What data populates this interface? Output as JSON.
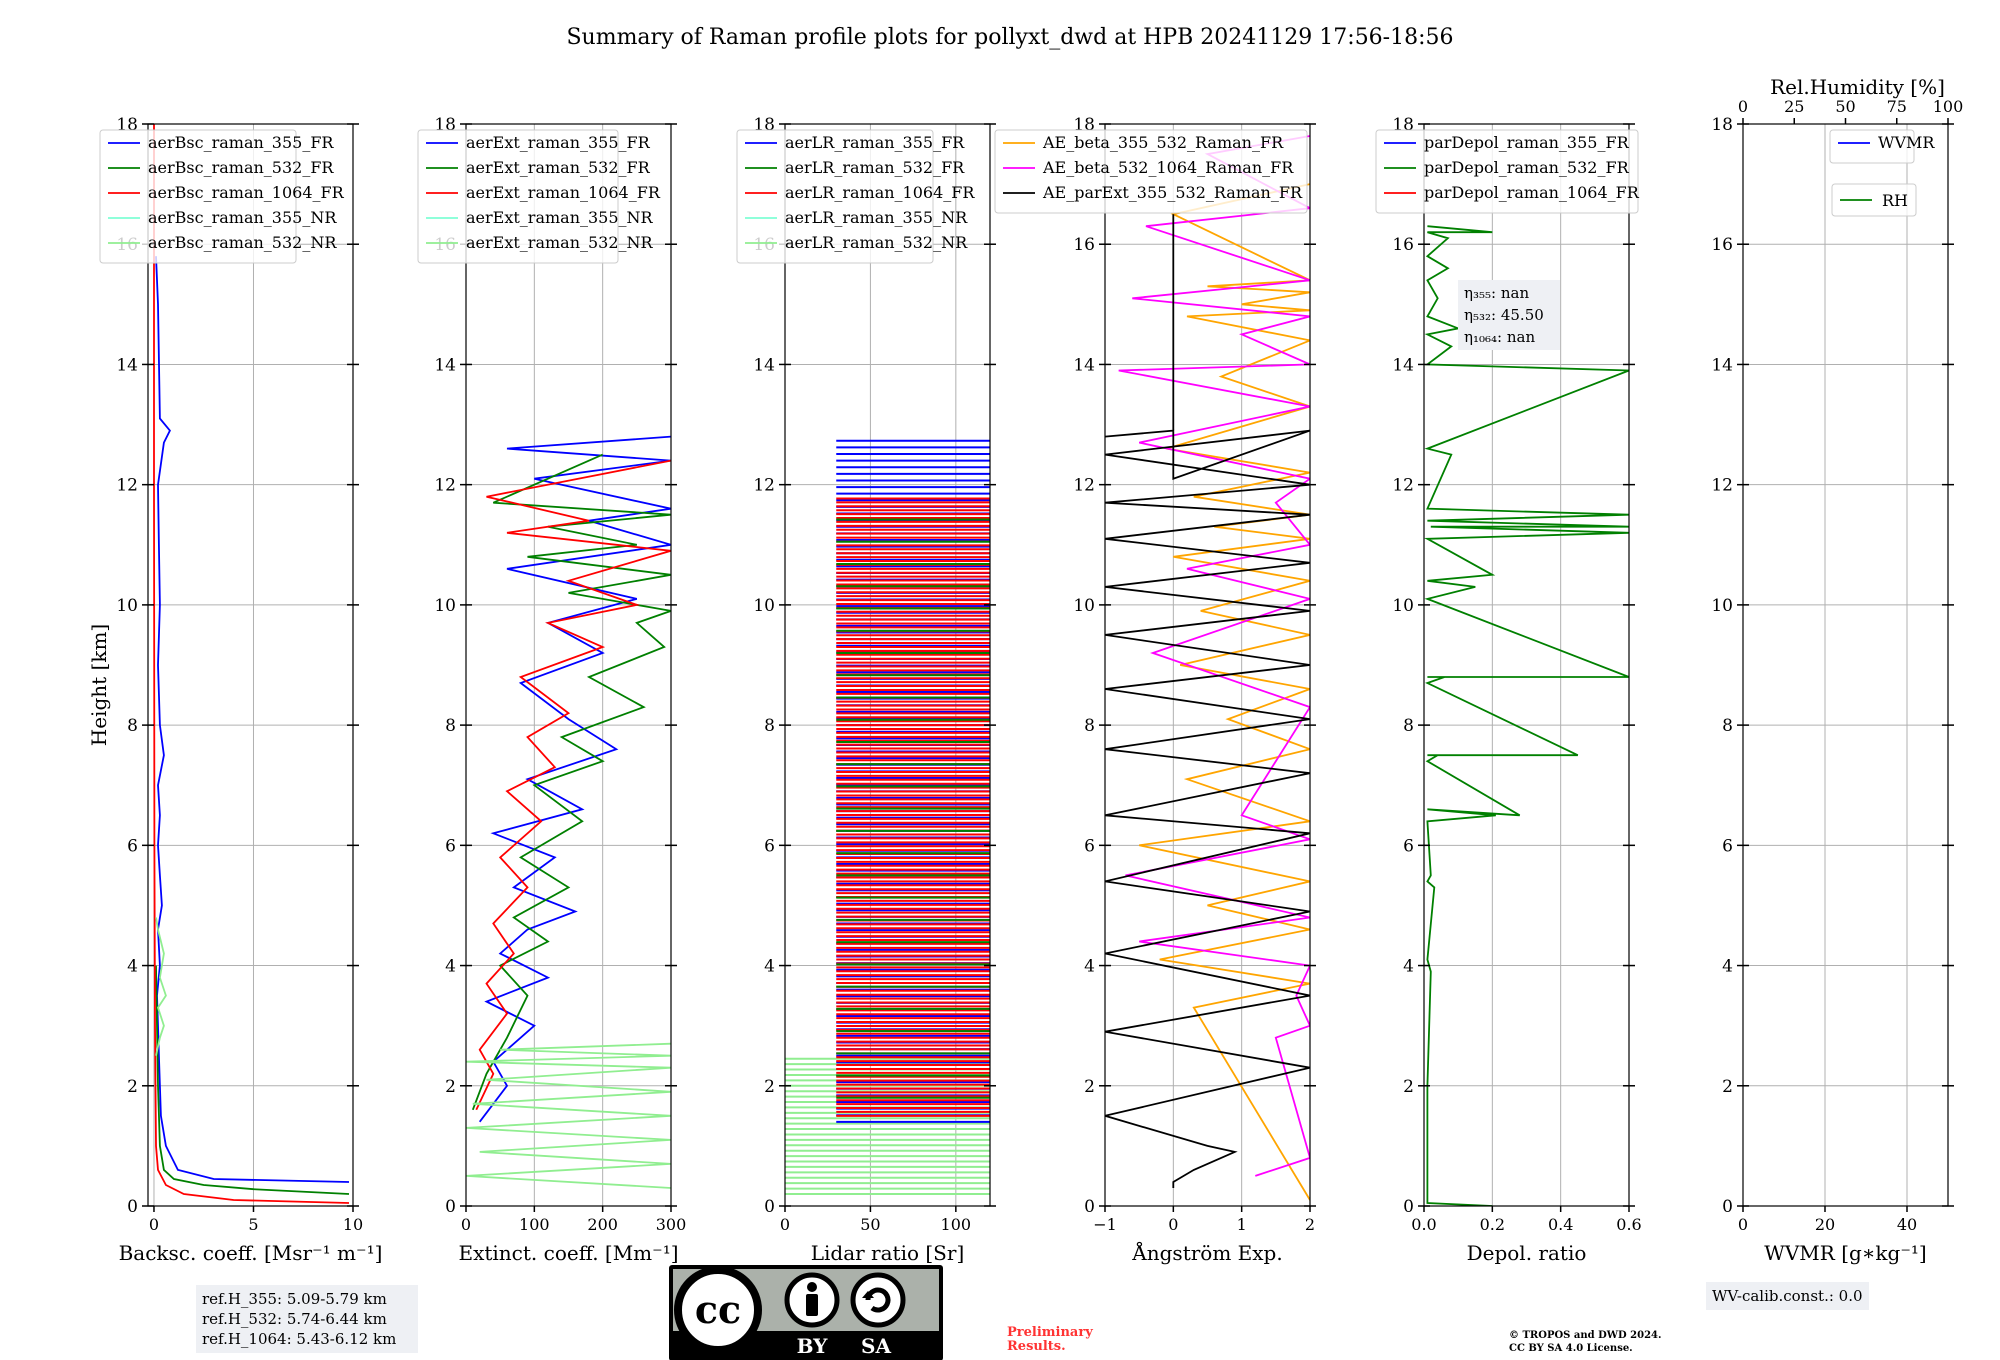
{
  "figure": {
    "title": "Summary of Raman profile plots for pollyxt_dwd at HPB 20241129 17:56-18:56",
    "ylabel": "Height [km]"
  },
  "chart_data": [
    {
      "type": "line",
      "name": "backscatter",
      "xlabel": "Backsc. coeff. [Msr⁻¹ m⁻¹]",
      "xlim": [
        -0.3,
        10
      ],
      "ylim": [
        0,
        18
      ],
      "xticks": [
        0,
        5,
        10
      ],
      "xtick_labels": [
        "0",
        "5",
        "10"
      ],
      "yticks": [
        0,
        2,
        4,
        6,
        8,
        10,
        12,
        14,
        16,
        18
      ],
      "ytick_labels": [
        "0",
        "2",
        "4",
        "6",
        "8",
        "10",
        "12",
        "14",
        "16",
        "18"
      ],
      "legend": [
        "aerBsc_raman_355_FR",
        "aerBsc_raman_532_FR",
        "aerBsc_raman_1064_FR",
        "aerBsc_raman_355_NR",
        "aerBsc_raman_532_NR"
      ],
      "series": [
        {
          "name": "aerBsc_raman_355_FR",
          "color": "#0000ff",
          "x": [
            9.8,
            3,
            1.2,
            0.6,
            0.35,
            0.3,
            0.25,
            0.2,
            0.15,
            0.3,
            0.2,
            0.4,
            0.3,
            0.2,
            0.3,
            0.2,
            0.5,
            0.3,
            0.2,
            0.3,
            0.25,
            0.2,
            0.5,
            0.8,
            0.3,
            0.2,
            0.1
          ],
          "y": [
            0.4,
            0.45,
            0.6,
            1,
            1.5,
            2,
            2.5,
            3,
            3.5,
            4,
            4.6,
            5,
            5.5,
            6,
            6.5,
            7,
            7.5,
            8,
            9,
            10,
            11,
            12,
            12.7,
            12.9,
            13.1,
            15,
            15.8
          ]
        },
        {
          "name": "aerBsc_raman_532_FR",
          "color": "#008000",
          "x": [
            9.8,
            5,
            2.5,
            1,
            0.5,
            0.3,
            0.2,
            0.15,
            0.1
          ],
          "y": [
            0.2,
            0.28,
            0.35,
            0.45,
            0.6,
            1,
            2,
            3,
            4
          ]
        },
        {
          "name": "aerBsc_raman_1064_FR",
          "color": "#ff0000",
          "x": [
            9.8,
            4,
            1.5,
            0.6,
            0.2,
            0.1,
            0.05,
            0.02,
            0,
            0
          ],
          "y": [
            0.05,
            0.1,
            0.2,
            0.35,
            0.6,
            1,
            3,
            6,
            12,
            18
          ]
        },
        {
          "name": "aerBsc_raman_532_NR",
          "color": "#90ee90",
          "x": [
            0.1,
            0.3,
            0.5,
            0.2,
            0.6,
            0.3,
            0.5,
            0.2,
            0.1
          ],
          "y": [
            2.5,
            2.8,
            3,
            3.3,
            3.5,
            3.8,
            4.2,
            4.6,
            4.8
          ]
        }
      ]
    },
    {
      "type": "line",
      "name": "extinction",
      "xlabel": "Extinct. coeff. [Mm⁻¹]",
      "xlim": [
        0,
        300
      ],
      "ylim": [
        0,
        18
      ],
      "xticks": [
        0,
        100,
        200,
        300
      ],
      "xtick_labels": [
        "0",
        "100",
        "200",
        "300"
      ],
      "yticks": [
        0,
        2,
        4,
        6,
        8,
        10,
        12,
        14,
        16,
        18
      ],
      "ytick_labels": [
        "0",
        "2",
        "4",
        "6",
        "8",
        "10",
        "12",
        "14",
        "16",
        "18"
      ],
      "legend": [
        "aerExt_raman_355_FR",
        "aerExt_raman_532_FR",
        "aerExt_raman_1064_FR",
        "aerExt_raman_355_NR",
        "aerExt_raman_532_NR"
      ],
      "series": [
        {
          "name": "aerExt_raman_355_FR",
          "color": "#0000ff",
          "x": [
            20,
            60,
            40,
            100,
            30,
            120,
            50,
            90,
            160,
            70,
            130,
            40,
            170,
            90,
            220,
            150,
            80,
            200,
            120,
            250,
            60,
            300,
            180,
            300,
            100,
            300,
            60,
            300
          ],
          "y": [
            1.4,
            2,
            2.4,
            3,
            3.4,
            3.8,
            4.2,
            4.6,
            4.9,
            5.3,
            5.8,
            6.2,
            6.6,
            7.1,
            7.6,
            8.1,
            8.7,
            9.2,
            9.7,
            10.1,
            10.6,
            11,
            11.4,
            11.6,
            12.1,
            12.4,
            12.6,
            12.8
          ]
        },
        {
          "name": "aerExt_raman_532_FR",
          "color": "#008000",
          "x": [
            10,
            30,
            60,
            90,
            50,
            120,
            70,
            150,
            80,
            170,
            100,
            200,
            140,
            260,
            180,
            290,
            250,
            300,
            150,
            300,
            90,
            250,
            120,
            300,
            40,
            200
          ],
          "y": [
            1.6,
            2.2,
            2.8,
            3.5,
            4,
            4.4,
            4.8,
            5.3,
            5.8,
            6.4,
            7,
            7.4,
            7.8,
            8.3,
            8.8,
            9.3,
            9.7,
            9.9,
            10.2,
            10.5,
            10.8,
            11,
            11.3,
            11.5,
            11.7,
            12.5
          ]
        },
        {
          "name": "aerExt_raman_1064_FR",
          "color": "#ff0000",
          "x": [
            15,
            40,
            20,
            60,
            30,
            70,
            40,
            90,
            50,
            110,
            60,
            130,
            90,
            150,
            80,
            200,
            120,
            250,
            150,
            300,
            60,
            180,
            30,
            300
          ],
          "y": [
            1.6,
            2.2,
            2.6,
            3.2,
            3.7,
            4.2,
            4.7,
            5.3,
            5.8,
            6.4,
            6.9,
            7.3,
            7.8,
            8.2,
            8.8,
            9.3,
            9.7,
            10,
            10.4,
            10.9,
            11.2,
            11.4,
            11.8,
            12.4
          ]
        },
        {
          "name": "aerExt_raman_532_NR",
          "color": "#90ee90",
          "x": [
            300,
            0,
            300,
            20,
            300,
            0,
            300,
            10,
            300,
            30,
            300,
            0,
            300,
            50,
            300
          ],
          "y": [
            0.3,
            0.5,
            0.7,
            0.9,
            1.1,
            1.3,
            1.5,
            1.7,
            1.9,
            2.1,
            2.3,
            2.4,
            2.5,
            2.6,
            2.7
          ]
        }
      ]
    },
    {
      "type": "line",
      "name": "lidar_ratio",
      "xlabel": "Lidar ratio [Sr]",
      "xlim": [
        0,
        120
      ],
      "ylim": [
        0,
        18
      ],
      "xticks": [
        0,
        50,
        100
      ],
      "xtick_labels": [
        "0",
        "50",
        "100"
      ],
      "yticks": [
        0,
        2,
        4,
        6,
        8,
        10,
        12,
        14,
        16,
        18
      ],
      "ytick_labels": [
        "0",
        "2",
        "4",
        "6",
        "8",
        "10",
        "12",
        "14",
        "16",
        "18"
      ],
      "legend": [
        "aerLR_raman_355_FR",
        "aerLR_raman_532_FR",
        "aerLR_raman_1064_FR",
        "aerLR_raman_355_NR",
        "aerLR_raman_532_NR"
      ],
      "bands": [
        {
          "name": "aerLR_raman_532_NR",
          "color": "#90ee90",
          "from": 0.2,
          "to": 2.5,
          "step": 0.09
        },
        {
          "name": "aerLR_raman_355_FR",
          "color": "#0000ff",
          "from": 1.4,
          "to": 12.8,
          "step": 0.11
        },
        {
          "name": "aerLR_raman_1064_FR",
          "color": "#ff0000",
          "from": 1.5,
          "to": 11.8,
          "step": 0.065
        },
        {
          "name": "aerLR_raman_532_FR",
          "color": "#008000",
          "from": 1.8,
          "to": 11.5,
          "step": 0.37
        }
      ]
    },
    {
      "type": "line",
      "name": "angstrom",
      "xlabel": "Ångström Exp.",
      "xlim": [
        -1,
        2
      ],
      "ylim": [
        0,
        18
      ],
      "xticks": [
        -1,
        0,
        1,
        2
      ],
      "xtick_labels": [
        "−1",
        "0",
        "1",
        "2"
      ],
      "yticks": [
        0,
        2,
        4,
        6,
        8,
        10,
        12,
        14,
        16,
        18
      ],
      "ytick_labels": [
        "0",
        "2",
        "4",
        "6",
        "8",
        "10",
        "12",
        "14",
        "16",
        "18"
      ],
      "legend": [
        "AE_beta_355_532_Raman_FR",
        "AE_beta_532_1064_Raman_FR",
        "AE_parExt_355_532_Raman_FR"
      ],
      "series": [
        {
          "name": "AE_beta_355_532_Raman_FR",
          "color": "#ffa500",
          "x": [
            2,
            0.3,
            2,
            -0.2,
            2,
            0.5,
            2,
            -0.5,
            2,
            0.2,
            2,
            0.8,
            2,
            0.1,
            2,
            0.4,
            2,
            0,
            2,
            0.6,
            2,
            0.3,
            2,
            -0.1,
            2,
            0.7,
            2,
            0.2,
            2,
            1,
            2,
            0.5,
            2,
            0,
            2
          ],
          "y": [
            0.1,
            3.3,
            3.7,
            4.1,
            4.6,
            5,
            5.4,
            6,
            6.4,
            7.1,
            7.6,
            8.1,
            8.6,
            9,
            9.5,
            9.9,
            10.4,
            10.8,
            11.1,
            11.3,
            11.5,
            11.8,
            12.2,
            12.6,
            13.3,
            13.8,
            14.4,
            14.8,
            14.9,
            15,
            15.2,
            15.3,
            15.4,
            16.5,
            17
          ]
        },
        {
          "name": "AE_beta_532_1064_Raman_FR",
          "color": "#ff00ff",
          "x": [
            1.2,
            2,
            1.5,
            2,
            1.8,
            2,
            -0.5,
            2,
            -0.7,
            2,
            1,
            2,
            -0.3,
            2,
            0.2,
            2,
            1.5,
            2,
            -0.5,
            2,
            -0.8,
            2,
            1,
            2,
            -0.6,
            2,
            -0.4,
            2,
            0.5,
            2
          ],
          "y": [
            0.5,
            0.8,
            2.8,
            3,
            3.5,
            4,
            4.4,
            4.8,
            5.5,
            6.1,
            6.5,
            8.3,
            9.2,
            10.1,
            10.6,
            11,
            11.7,
            12.1,
            12.7,
            13.3,
            13.9,
            14,
            14.5,
            14.8,
            15.1,
            15.4,
            16.3,
            16.6,
            17.5,
            17.8
          ]
        },
        {
          "name": "AE_parExt_355_532_Raman_FR",
          "color": "#000000",
          "x": [
            0,
            0,
            0.3,
            0.9,
            0.5,
            -1,
            2,
            -1,
            2,
            -1,
            2,
            -1,
            2,
            -1,
            2,
            -1,
            2,
            -1,
            2,
            -1,
            2,
            -1,
            2,
            -1,
            2,
            -1,
            2,
            -1,
            2,
            0,
            0,
            -1,
            0,
            0,
            0
          ],
          "y": [
            0.3,
            0.4,
            0.6,
            0.9,
            1,
            1.5,
            2.3,
            2.9,
            3.5,
            4.2,
            4.9,
            5.4,
            6.2,
            6.5,
            7.2,
            7.6,
            8.1,
            8.6,
            9,
            9.5,
            9.9,
            10.3,
            10.7,
            11.1,
            11.5,
            11.7,
            12,
            12.5,
            12.9,
            12.1,
            12.9,
            12.8,
            12.9,
            15,
            16.5
          ]
        }
      ]
    },
    {
      "type": "line",
      "name": "depol",
      "xlabel": "Depol. ratio",
      "xlim": [
        0,
        0.6
      ],
      "ylim": [
        0,
        18
      ],
      "xticks": [
        0,
        0.2,
        0.4,
        0.6
      ],
      "xtick_labels": [
        "0.0",
        "0.2",
        "0.4",
        "0.6"
      ],
      "yticks": [
        0,
        2,
        4,
        6,
        8,
        10,
        12,
        14,
        16,
        18
      ],
      "ytick_labels": [
        "0",
        "2",
        "4",
        "6",
        "8",
        "10",
        "12",
        "14",
        "16",
        "18"
      ],
      "legend": [
        "parDepol_raman_355_FR",
        "parDepol_raman_532_FR",
        "parDepol_raman_1064_FR"
      ],
      "annotation": [
        "η₃₅₅: nan",
        "η₅₃₂: 45.50",
        "η₁₀₆₄: nan"
      ],
      "series": [
        {
          "name": "parDepol_raman_532_FR",
          "color": "#008000",
          "x": [
            0.2,
            0.01,
            0.01,
            0.02,
            0.01,
            0.03,
            0.01,
            0.02,
            0.01,
            0.21,
            0.01,
            0.28,
            0.01,
            0.04,
            0.01,
            0.45,
            0.01,
            0.06,
            0.01,
            0.6,
            0.01,
            0.15,
            0.01,
            0.2,
            0.01,
            0.6,
            0.02,
            0.6,
            0.01,
            0.6,
            0.01,
            0.08,
            0.01,
            0.6,
            0.01,
            0.08,
            0.01,
            0.1,
            0.01,
            0.04,
            0.01,
            0.07,
            0.01,
            0.07,
            0.01,
            0.2,
            0.01
          ],
          "y": [
            0,
            0.05,
            2,
            3.9,
            4.1,
            5.3,
            5.4,
            5.5,
            6.4,
            6.5,
            6.6,
            6.5,
            7.4,
            7.5,
            7.5,
            7.5,
            8.7,
            8.8,
            8.8,
            8.8,
            10.1,
            10.3,
            10.4,
            10.5,
            11.1,
            11.2,
            11.3,
            11.3,
            11.4,
            11.5,
            11.6,
            12.5,
            12.6,
            13.9,
            14,
            14.3,
            14.5,
            14.6,
            14.8,
            15.1,
            15.4,
            15.6,
            15.8,
            16.1,
            16.2,
            16.2,
            16.3
          ]
        }
      ]
    },
    {
      "type": "line",
      "name": "wvmr",
      "xlabel": "WVMR [g∗kg⁻¹]",
      "top_xlabel": "Rel.Humidity [%]",
      "xlim": [
        0,
        50
      ],
      "ylim": [
        0,
        18
      ],
      "xticks": [
        0,
        20,
        40
      ],
      "xtick_labels": [
        "0",
        "20",
        "40"
      ],
      "top_xticks": [
        0,
        25,
        50,
        75,
        100
      ],
      "top_xtick_labels": [
        "0",
        "25",
        "50",
        "75",
        "100"
      ],
      "yticks": [
        0,
        2,
        4,
        6,
        8,
        10,
        12,
        14,
        16,
        18
      ],
      "ytick_labels": [
        "0",
        "2",
        "4",
        "6",
        "8",
        "10",
        "12",
        "14",
        "16",
        "18"
      ],
      "legend": [
        "WVMR"
      ],
      "legend2": [
        "RH"
      ],
      "series": []
    }
  ],
  "notes": {
    "refh": [
      "ref.H_355: 5.09-5.79 km",
      "ref.H_532: 5.74-6.44 km",
      "ref.H_1064: 5.43-6.12 km"
    ],
    "wv_calib": "WV-calib.const.: 0.0",
    "preliminary": [
      "Preliminary",
      "Results."
    ],
    "copyright": [
      "© TROPOS and DWD 2024.",
      "CC BY SA 4.0 License."
    ],
    "license_badge": {
      "cc": "cc",
      "by": "BY",
      "sa": "SA"
    }
  }
}
